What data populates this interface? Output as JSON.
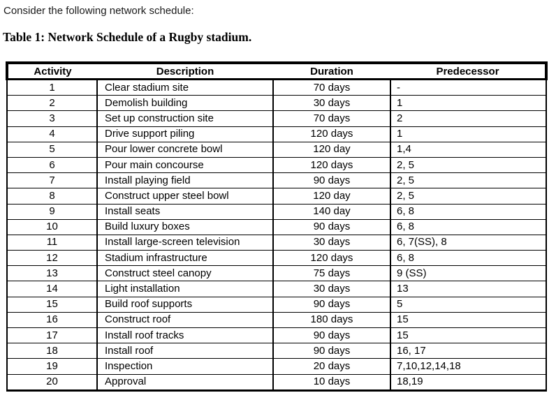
{
  "intro": "Consider the following network schedule:",
  "table_title": "Table 1: Network Schedule of a Rugby stadium.",
  "table": {
    "headers": [
      "Activity",
      "Description",
      "Duration",
      "Predecessor"
    ],
    "rows": [
      [
        "1",
        "Clear stadium site",
        "70 days",
        "-"
      ],
      [
        "2",
        "Demolish building",
        "30 days",
        "1"
      ],
      [
        "3",
        "Set up construction site",
        "70 days",
        "2"
      ],
      [
        "4",
        "Drive support piling",
        "120 days",
        "1"
      ],
      [
        "5",
        "Pour lower concrete bowl",
        "120 day",
        "1,4"
      ],
      [
        "6",
        "Pour main concourse",
        "120 days",
        "2, 5"
      ],
      [
        "7",
        "Install playing field",
        "90 days",
        "2, 5"
      ],
      [
        "8",
        "Construct upper steel bowl",
        "120 day",
        "2, 5"
      ],
      [
        "9",
        "Install seats",
        "140 day",
        "6, 8"
      ],
      [
        "10",
        "Build luxury boxes",
        "90 days",
        "6, 8"
      ],
      [
        "11",
        "Install large-screen television",
        "30 days",
        "6, 7(SS), 8"
      ],
      [
        "12",
        "Stadium infrastructure",
        "120 days",
        "6, 8"
      ],
      [
        "13",
        "Construct steel canopy",
        "75 days",
        "9 (SS)"
      ],
      [
        "14",
        "Light installation",
        "30 days",
        "13"
      ],
      [
        "15",
        "Build roof supports",
        "90 days",
        "5"
      ],
      [
        "16",
        "Construct roof",
        "180 days",
        "15"
      ],
      [
        "17",
        "Install roof tracks",
        "90 days",
        "15"
      ],
      [
        "18",
        "Install roof",
        "90 days",
        "16, 17"
      ],
      [
        "19",
        "Inspection",
        "20 days",
        "7,10,12,14,18"
      ],
      [
        "20",
        "Approval",
        "10 days",
        "18,19"
      ]
    ]
  },
  "colors": {
    "text": "#000000",
    "background": "#ffffff",
    "border": "#000000"
  }
}
